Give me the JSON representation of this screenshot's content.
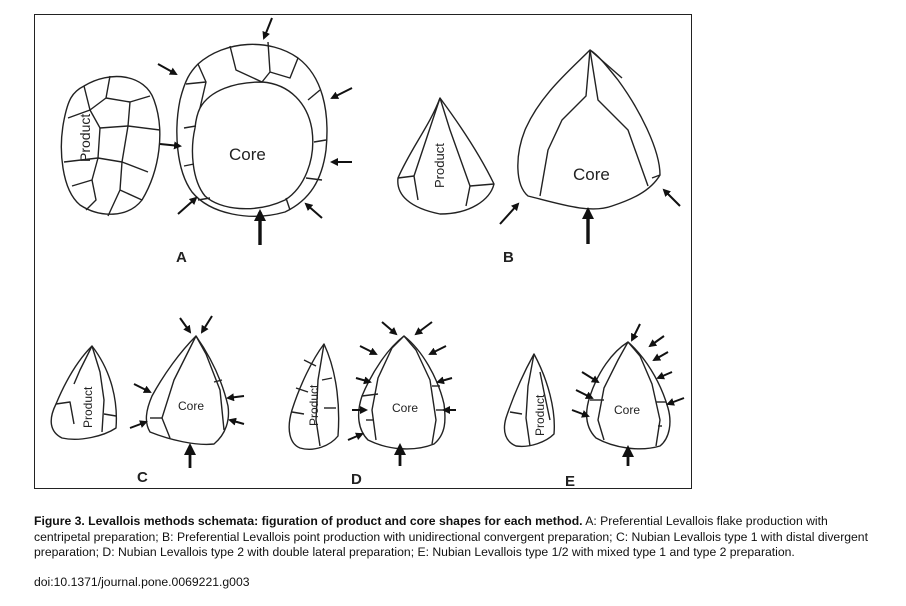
{
  "panels": [
    {
      "letter": "A",
      "product_label": "Product",
      "core_label": "Core"
    },
    {
      "letter": "B",
      "product_label": "Product",
      "core_label": "Core"
    },
    {
      "letter": "C",
      "product_label": "Product",
      "core_label": "Core"
    },
    {
      "letter": "D",
      "product_label": "Product",
      "core_label": "Core"
    },
    {
      "letter": "E",
      "product_label": "Product",
      "core_label": "Core"
    }
  ],
  "caption": {
    "title": "Figure 3. Levallois methods schemata: figuration of product and core shapes for each method.",
    "body": " A: Preferential Levallois flake production with centripetal preparation; B: Preferential Levallois point production with unidirectional convergent preparation; C: Nubian Levallois type 1 with distal divergent preparation; D: Nubian Levallois type 2 with double lateral preparation; E: Nubian Levallois type 1/2 with mixed type 1 and type 2 preparation.",
    "doi": "doi:10.1371/journal.pone.0069221.g003"
  }
}
